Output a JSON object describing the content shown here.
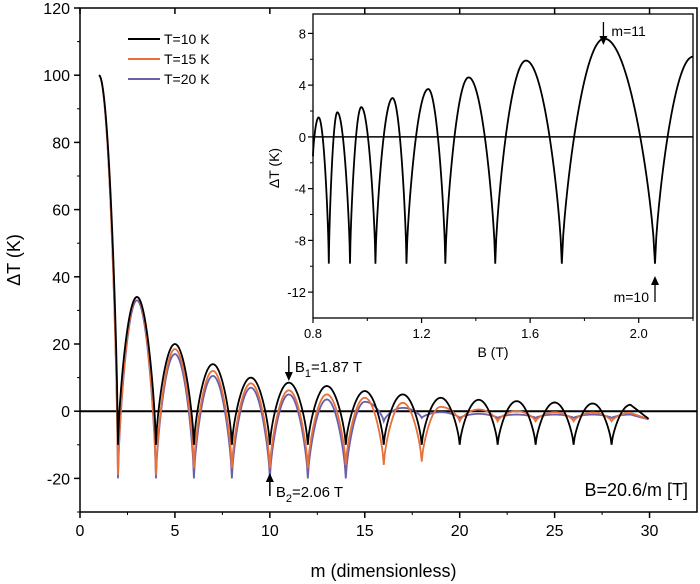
{
  "chart_data": [
    {
      "type": "line",
      "xlabel": "m (dimensionless)",
      "ylabel": "ΔT (K)",
      "xlim": [
        0,
        32.5
      ],
      "ylim": [
        -30,
        120
      ],
      "x_ticks": [
        "0",
        "5",
        "10",
        "15",
        "20",
        "25",
        "30"
      ],
      "y_ticks": [
        "-20",
        "0",
        "20",
        "40",
        "60",
        "80",
        "100",
        "120"
      ],
      "legend_placement": "top-left",
      "series": [
        {
          "name": "T=10 K",
          "color": "#000000",
          "peaks": [
            100,
            34,
            20,
            14,
            10,
            8.5,
            7.5,
            6,
            5,
            4,
            3.4,
            3,
            2.6,
            2.3,
            1.9
          ],
          "minima": [
            -10,
            -10,
            -10,
            -10,
            -10,
            -10,
            -10,
            -10,
            -10,
            -10,
            -10,
            -10,
            -10,
            -10
          ]
        },
        {
          "name": "T=15 K",
          "color": "#e8703a",
          "peaks": [
            100,
            34,
            18.5,
            12,
            8.3,
            6.2,
            5,
            4,
            2.5,
            1.3,
            0.5,
            0,
            -0.3,
            -0.4,
            -0.5
          ],
          "minima": [
            -19,
            -19,
            -17,
            -17,
            -17,
            -17,
            -16,
            -16,
            -15,
            -3,
            -3,
            -3,
            -3,
            -3
          ]
        },
        {
          "name": "T=20 K",
          "color": "#6a5fa8",
          "peaks": [
            100,
            33,
            17,
            10.5,
            7,
            5,
            3.5,
            2.8,
            1,
            -0.3,
            -0.8,
            -1,
            -1,
            -1,
            -1
          ],
          "minima": [
            -20,
            -20,
            -20,
            -20,
            -20,
            -20,
            -20,
            -3,
            -2,
            -2,
            -2,
            -2,
            -2,
            -2
          ]
        }
      ],
      "annotations": [
        {
          "text_main": "B",
          "text_sub": "1",
          "text_rest": "=1.87 T",
          "x": 11,
          "y": 8.5
        },
        {
          "text_main": "B",
          "text_sub": "2",
          "text_rest": "=2.06 T",
          "x": 10,
          "y": -20
        },
        {
          "text": "B=20.6/m [T]"
        }
      ]
    },
    {
      "type": "line",
      "xlabel": "B (T)",
      "ylabel": "ΔT (K)",
      "xlim": [
        0.8,
        2.2
      ],
      "ylim": [
        -14,
        9.5
      ],
      "x_ticks": [
        "0.8",
        "1.2",
        "1.6",
        "2.0"
      ],
      "y_ticks": [
        "-12",
        "-8",
        "-4",
        "0",
        "4",
        "8"
      ],
      "series": [
        {
          "name": "",
          "color": "#000000",
          "peaks": [
            [
              0.8208,
              1.5
            ],
            [
              0.8897,
              1.9
            ],
            [
              0.9779,
              2.3
            ],
            [
              1.0933,
              3.0
            ],
            [
              1.2246,
              3.7
            ],
            [
              1.3734,
              4.6
            ],
            [
              1.5846,
              5.9
            ],
            [
              1.8728,
              7.6
            ]
          ],
          "minima": [
            0.8583,
            0.9364,
            1.03,
            1.1444,
            1.2875,
            1.4714,
            1.7167,
            2.06
          ],
          "min_value": -9.8,
          "start": [
            0.8,
            -1.5
          ],
          "end": [
            2.2,
            6.2
          ]
        }
      ],
      "annotations": [
        {
          "text": "m=11",
          "x": 1.87,
          "y": 7.6
        },
        {
          "text": "m=10",
          "x": 2.06,
          "y": -9.8
        }
      ]
    }
  ]
}
